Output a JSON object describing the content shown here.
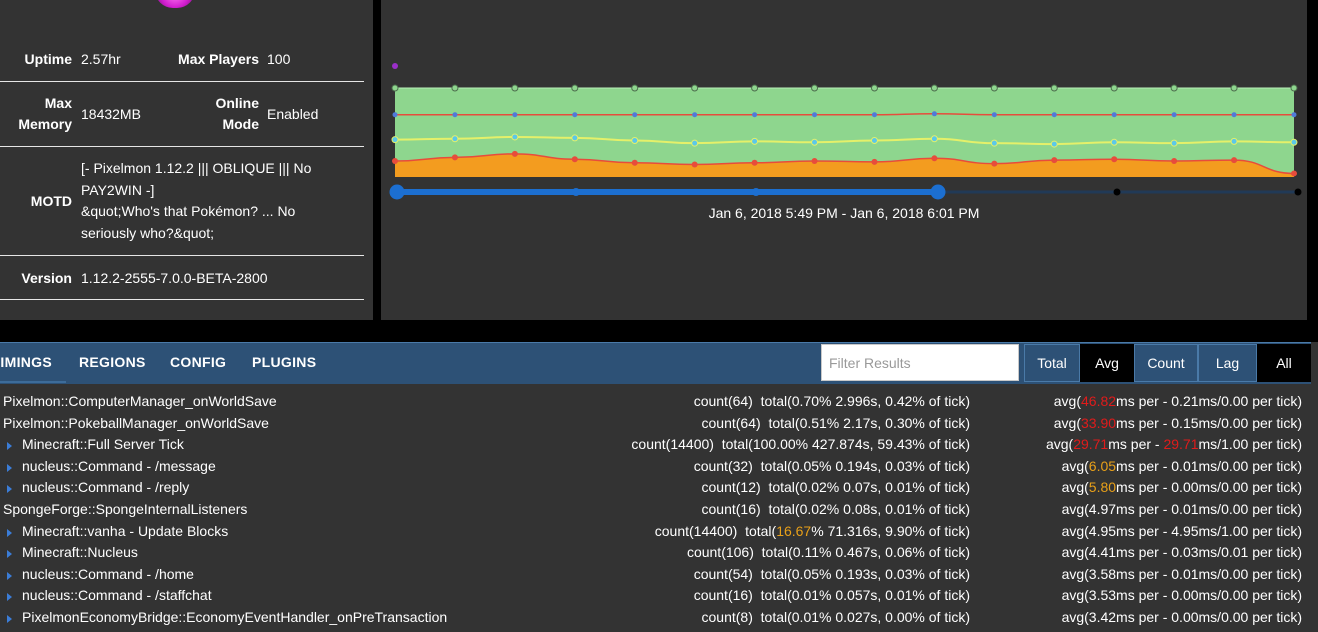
{
  "server_info": {
    "uptime_label": "Uptime",
    "uptime_value": "2.57hr",
    "max_players_label": "Max Players",
    "max_players_value": "100",
    "max_memory_label_1": "Max",
    "max_memory_label_2": "Memory",
    "max_memory_value": "18432MB",
    "online_mode_label_1": "Online",
    "online_mode_label_2": "Mode",
    "online_mode_value": "Enabled",
    "motd_label": "MOTD",
    "motd_line_1": "[- Pixelmon 1.12.2 ||| OBLIQUE ||| No",
    "motd_line_2": "PAY2WIN -]",
    "motd_line_3": "&quot;Who's that Pokémon? ... No",
    "motd_line_4": "seriously who?&quot;",
    "version_label": "Version",
    "version_value": "1.12.2-2555-7.0.0-BETA-2800"
  },
  "chart": {
    "range_label": "Jan 6, 2018 5:49 PM - Jan 6, 2018 6:01 PM",
    "colors": {
      "green_fill": "#8ed68e",
      "orange_fill": "#f39c1f",
      "red_line": "#e74c3c",
      "blue_points": "#4f7ad9",
      "yellow_line": "#e4f06a",
      "cyan_points": "#5bc8e8",
      "slider_blue": "#1c6fd1",
      "purple_dot": "#9b2fc9"
    }
  },
  "chart_data": {
    "type": "area",
    "series": [
      {
        "values": [
          100,
          100,
          100,
          100,
          100,
          100,
          100,
          100,
          100,
          100,
          100,
          100,
          100,
          100,
          100,
          100
        ]
      },
      {
        "values": [
          70,
          70,
          70,
          70,
          70,
          70,
          70,
          70,
          70,
          71,
          70,
          70,
          70,
          70,
          70,
          70
        ]
      },
      {
        "values": [
          42,
          43,
          45,
          44,
          41,
          38,
          40,
          39,
          41,
          43,
          38,
          37,
          39,
          38,
          40,
          39
        ]
      },
      {
        "values": [
          18,
          22,
          26,
          20,
          16,
          14,
          16,
          18,
          17,
          21,
          15,
          19,
          20,
          18,
          19,
          4
        ]
      }
    ]
  },
  "toolbar": {
    "tabs": [
      "TIMINGS",
      "REGIONS",
      "CONFIG",
      "PLUGINS"
    ],
    "filter_placeholder": "Filter Results",
    "modes": [
      "Total",
      "Avg",
      "Count",
      "Lag",
      "All"
    ]
  },
  "timings": [
    {
      "name": "Pixelmon::ComputerManager_onWorldSave",
      "expandable": false,
      "count": "count(64)",
      "total_pre": "total(",
      "total_hl": "0.70%",
      "total_hl_color": "",
      "total_post": " 2.996s, 0.42% of tick)",
      "avg_pre": "avg(",
      "avg_hl": "46.82",
      "avg_hl_color": "red",
      "avg_mid": "ms per - 0.21ms/0.00 per tick)",
      "avg_hl2": "",
      "avg_post": ""
    },
    {
      "name": "Pixelmon::PokeballManager_onWorldSave",
      "expandable": false,
      "count": "count(64)",
      "total_pre": "total(",
      "total_hl": "0.51%",
      "total_hl_color": "",
      "total_post": " 2.17s, 0.30% of tick)",
      "avg_pre": "avg(",
      "avg_hl": "33.90",
      "avg_hl_color": "red",
      "avg_mid": "ms per - 0.15ms/0.00 per tick)",
      "avg_hl2": "",
      "avg_post": ""
    },
    {
      "name": "Minecraft::Full Server Tick",
      "expandable": true,
      "count": "count(14400)",
      "total_pre": "total(",
      "total_hl": "100.00%",
      "total_hl_color": "",
      "total_post": " 427.874s, 59.43% of tick)",
      "avg_pre": "avg(",
      "avg_hl": "29.71",
      "avg_hl_color": "red",
      "avg_mid": "ms per - ",
      "avg_hl2": "29.71",
      "avg_post": "ms/1.00 per tick)"
    },
    {
      "name": "nucleus::Command - /message",
      "expandable": true,
      "count": "count(32)",
      "total_pre": "total(",
      "total_hl": "0.05%",
      "total_hl_color": "",
      "total_post": " 0.194s, 0.03% of tick)",
      "avg_pre": "avg(",
      "avg_hl": "6.05",
      "avg_hl_color": "orange",
      "avg_mid": "ms per - 0.01ms/0.00 per tick)",
      "avg_hl2": "",
      "avg_post": ""
    },
    {
      "name": "nucleus::Command - /reply",
      "expandable": true,
      "count": "count(12)",
      "total_pre": "total(",
      "total_hl": "0.02%",
      "total_hl_color": "",
      "total_post": " 0.07s, 0.01% of tick)",
      "avg_pre": "avg(",
      "avg_hl": "5.80",
      "avg_hl_color": "orange",
      "avg_mid": "ms per - 0.00ms/0.00 per tick)",
      "avg_hl2": "",
      "avg_post": ""
    },
    {
      "name": "SpongeForge::SpongeInternalListeners",
      "expandable": false,
      "count": "count(16)",
      "total_pre": "total(",
      "total_hl": "0.02%",
      "total_hl_color": "",
      "total_post": " 0.08s, 0.01% of tick)",
      "avg_pre": "avg(",
      "avg_hl": "4.97",
      "avg_hl_color": "",
      "avg_mid": "ms per - 0.01ms/0.00 per tick)",
      "avg_hl2": "",
      "avg_post": ""
    },
    {
      "name": "Minecraft::vanha - Update Blocks",
      "expandable": true,
      "count": "count(14400)",
      "total_pre": "total(",
      "total_hl": "16.67",
      "total_hl_color": "orange",
      "total_post": "% 71.316s, 9.90% of tick)",
      "avg_pre": "avg(",
      "avg_hl": "4.95",
      "avg_hl_color": "",
      "avg_mid": "ms per - 4.95ms/1.00 per tick)",
      "avg_hl2": "",
      "avg_post": ""
    },
    {
      "name": "Minecraft::Nucleus",
      "expandable": true,
      "count": "count(106)",
      "total_pre": "total(",
      "total_hl": "0.11%",
      "total_hl_color": "",
      "total_post": " 0.467s, 0.06% of tick)",
      "avg_pre": "avg(",
      "avg_hl": "4.41",
      "avg_hl_color": "",
      "avg_mid": "ms per - 0.03ms/0.01 per tick)",
      "avg_hl2": "",
      "avg_post": ""
    },
    {
      "name": "nucleus::Command - /home",
      "expandable": true,
      "count": "count(54)",
      "total_pre": "total(",
      "total_hl": "0.05%",
      "total_hl_color": "",
      "total_post": " 0.193s, 0.03% of tick)",
      "avg_pre": "avg(",
      "avg_hl": "3.58",
      "avg_hl_color": "",
      "avg_mid": "ms per - 0.01ms/0.00 per tick)",
      "avg_hl2": "",
      "avg_post": ""
    },
    {
      "name": "nucleus::Command - /staffchat",
      "expandable": true,
      "count": "count(16)",
      "total_pre": "total(",
      "total_hl": "0.01%",
      "total_hl_color": "",
      "total_post": " 0.057s, 0.01% of tick)",
      "avg_pre": "avg(",
      "avg_hl": "3.53",
      "avg_hl_color": "",
      "avg_mid": "ms per - 0.00ms/0.00 per tick)",
      "avg_hl2": "",
      "avg_post": ""
    },
    {
      "name": "PixelmonEconomyBridge::EconomyEventHandler_onPreTransaction",
      "expandable": true,
      "count": "count(8)",
      "total_pre": "total(",
      "total_hl": "0.01%",
      "total_hl_color": "",
      "total_post": " 0.027s, 0.00% of tick)",
      "avg_pre": "avg(",
      "avg_hl": "3.42",
      "avg_hl_color": "",
      "avg_mid": "ms per - 0.00ms/0.00 per tick)",
      "avg_hl2": "",
      "avg_post": ""
    }
  ]
}
